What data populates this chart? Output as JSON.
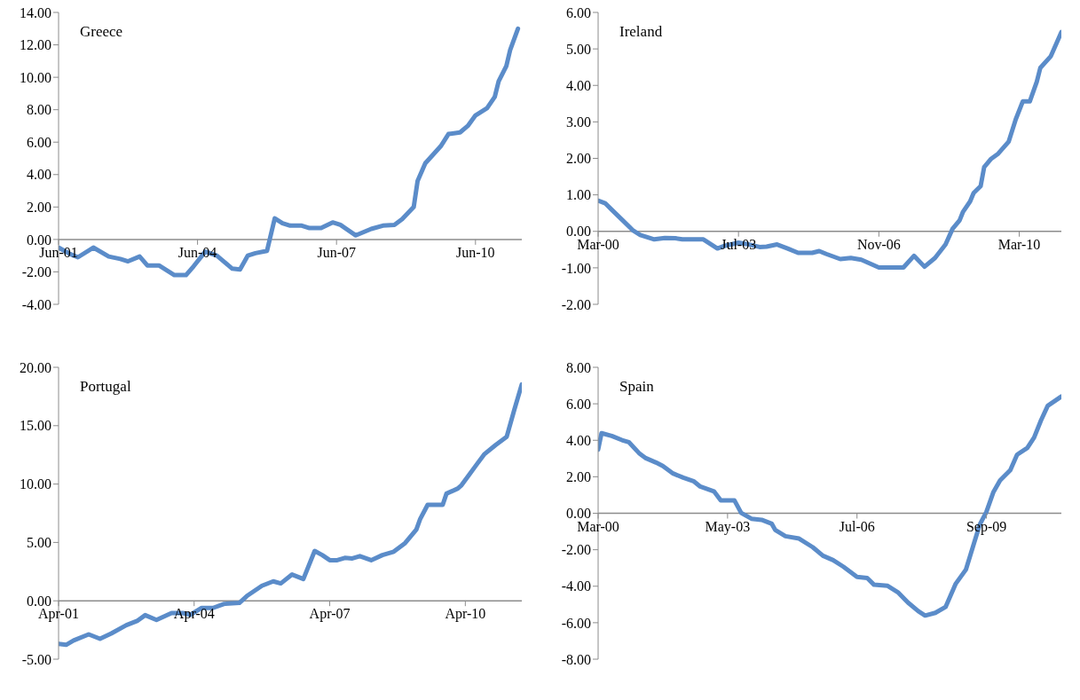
{
  "chart_data": [
    {
      "type": "line",
      "title": "Greece",
      "color": "#5b8cc9",
      "x": [
        "2001-06",
        "2001-09",
        "2001-11",
        "2002-03",
        "2002-07",
        "2002-10",
        "2002-12",
        "2003-03",
        "2003-05",
        "2003-08",
        "2003-12",
        "2004-03",
        "2004-05",
        "2004-08",
        "2004-11",
        "2005-03",
        "2005-05",
        "2005-07",
        "2005-09",
        "2005-12",
        "2006-02",
        "2006-04",
        "2006-06",
        "2006-09",
        "2006-11",
        "2007-02",
        "2007-05",
        "2007-07",
        "2007-11",
        "2008-03",
        "2008-06",
        "2008-09",
        "2008-11",
        "2009-02",
        "2009-03",
        "2009-05",
        "2009-09",
        "2009-11",
        "2010-02",
        "2010-04",
        "2010-06",
        "2010-09",
        "2010-11",
        "2010-12",
        "2011-02",
        "2011-03",
        "2011-05"
      ],
      "values": [
        -0.5,
        -0.9,
        -1.1,
        -0.5,
        -1.05,
        -1.2,
        -1.35,
        -1.05,
        -1.6,
        -1.6,
        -2.2,
        -2.2,
        -1.65,
        -0.75,
        -1.0,
        -1.8,
        -1.85,
        -1.0,
        -0.85,
        -0.7,
        1.3,
        1.0,
        0.85,
        0.85,
        0.7,
        0.7,
        1.05,
        0.9,
        0.25,
        0.65,
        0.85,
        0.9,
        1.25,
        2.0,
        3.6,
        4.7,
        5.75,
        6.5,
        6.6,
        7.0,
        7.65,
        8.1,
        8.8,
        9.75,
        10.7,
        11.7,
        13.0
      ],
      "xlim": [
        "2001-06",
        "2011-06"
      ],
      "xticks": [
        {
          "value": "2001-06",
          "label": "Jun-01"
        },
        {
          "value": "2004-06",
          "label": "Jun-04"
        },
        {
          "value": "2007-06",
          "label": "Jun-07"
        },
        {
          "value": "2010-06",
          "label": "Jun-10"
        }
      ],
      "ylim": [
        -4,
        14
      ],
      "yticks": [
        {
          "value": -4,
          "label": "-4.00"
        },
        {
          "value": -2,
          "label": "-2.00"
        },
        {
          "value": 0,
          "label": "0.00"
        },
        {
          "value": 2,
          "label": "2.00"
        },
        {
          "value": 4,
          "label": "4.00"
        },
        {
          "value": 6,
          "label": "6.00"
        },
        {
          "value": 8,
          "label": "8.00"
        },
        {
          "value": 10,
          "label": "10.00"
        },
        {
          "value": 12,
          "label": "12.00"
        },
        {
          "value": 14,
          "label": "14.00"
        }
      ]
    },
    {
      "type": "line",
      "title": "Ireland",
      "color": "#5b8cc9",
      "x": [
        "2000-03",
        "2000-05",
        "2000-07",
        "2000-10",
        "2001-01",
        "2001-03",
        "2001-07",
        "2001-10",
        "2002-01",
        "2002-03",
        "2002-09",
        "2003-01",
        "2003-03",
        "2003-07",
        "2003-10",
        "2004-01",
        "2004-03",
        "2004-06",
        "2004-09",
        "2004-12",
        "2005-04",
        "2005-06",
        "2005-08",
        "2005-12",
        "2006-03",
        "2006-06",
        "2006-11",
        "2007-06",
        "2007-09",
        "2007-12",
        "2008-03",
        "2008-06",
        "2008-08",
        "2008-10",
        "2008-11",
        "2009-01",
        "2009-02",
        "2009-04",
        "2009-05",
        "2009-07",
        "2009-09",
        "2009-12",
        "2010-02",
        "2010-04",
        "2010-06",
        "2010-08",
        "2010-09",
        "2010-12",
        "2011-03"
      ],
      "values": [
        0.84,
        0.77,
        0.58,
        0.3,
        0.02,
        -0.1,
        -0.22,
        -0.18,
        -0.19,
        -0.22,
        -0.22,
        -0.47,
        -0.4,
        -0.31,
        -0.36,
        -0.43,
        -0.42,
        -0.36,
        -0.47,
        -0.59,
        -0.59,
        -0.54,
        -0.62,
        -0.76,
        -0.73,
        -0.78,
        -0.99,
        -0.99,
        -0.67,
        -0.97,
        -0.73,
        -0.36,
        0.07,
        0.3,
        0.54,
        0.82,
        1.05,
        1.24,
        1.76,
        1.99,
        2.13,
        2.46,
        3.07,
        3.56,
        3.56,
        4.1,
        4.48,
        4.8,
        5.46
      ],
      "xlim": [
        "2000-03",
        "2011-03"
      ],
      "xticks": [
        {
          "value": "2000-03",
          "label": "Mar-00"
        },
        {
          "value": "2003-07",
          "label": "Jul-03"
        },
        {
          "value": "2006-11",
          "label": "Nov-06"
        },
        {
          "value": "2010-03",
          "label": "Mar-10"
        }
      ],
      "ylim": [
        -2,
        6
      ],
      "yticks": [
        {
          "value": -2,
          "label": "-2.00"
        },
        {
          "value": -1,
          "label": "-1.00"
        },
        {
          "value": 0,
          "label": "0.00"
        },
        {
          "value": 1,
          "label": "1.00"
        },
        {
          "value": 2,
          "label": "2.00"
        },
        {
          "value": 3,
          "label": "3.00"
        },
        {
          "value": 4,
          "label": "4.00"
        },
        {
          "value": 5,
          "label": "5.00"
        },
        {
          "value": 6,
          "label": "6.00"
        }
      ]
    },
    {
      "type": "line",
      "title": "Portugal",
      "color": "#5b8cc9",
      "x": [
        "2001-04",
        "2001-06",
        "2001-08",
        "2001-12",
        "2002-03",
        "2002-06",
        "2002-10",
        "2003-01",
        "2003-03",
        "2003-06",
        "2003-10",
        "2004-01",
        "2004-03",
        "2004-06",
        "2004-09",
        "2004-12",
        "2005-04",
        "2005-06",
        "2005-10",
        "2006-01",
        "2006-03",
        "2006-06",
        "2006-09",
        "2006-12",
        "2007-02",
        "2007-04",
        "2007-06",
        "2007-08",
        "2007-10",
        "2007-12",
        "2008-03",
        "2008-06",
        "2008-09",
        "2008-12",
        "2009-03",
        "2009-04",
        "2009-06",
        "2009-10",
        "2009-11",
        "2010-02",
        "2010-03",
        "2010-05",
        "2010-07",
        "2010-09",
        "2010-12",
        "2011-03",
        "2011-05",
        "2011-07"
      ],
      "values": [
        -3.68,
        -3.77,
        -3.39,
        -2.87,
        -3.25,
        -2.8,
        -2.08,
        -1.7,
        -1.23,
        -1.64,
        -1.05,
        -1.05,
        -1.2,
        -0.61,
        -0.61,
        -0.26,
        -0.18,
        0.41,
        1.29,
        1.67,
        1.49,
        2.25,
        1.87,
        4.27,
        3.92,
        3.48,
        3.48,
        3.68,
        3.63,
        3.83,
        3.48,
        3.92,
        4.21,
        4.94,
        6.11,
        6.99,
        8.22,
        8.22,
        9.18,
        9.62,
        9.91,
        10.79,
        11.67,
        12.54,
        13.33,
        14.06,
        16.35,
        18.54
      ],
      "xlim": [
        "2001-04",
        "2011-07"
      ],
      "xticks": [
        {
          "value": "2001-04",
          "label": "Apr-01"
        },
        {
          "value": "2004-04",
          "label": "Apr-04"
        },
        {
          "value": "2007-04",
          "label": "Apr-07"
        },
        {
          "value": "2010-04",
          "label": "Apr-10"
        }
      ],
      "ylim": [
        -5,
        20
      ],
      "yticks": [
        {
          "value": -5,
          "label": "-5.00"
        },
        {
          "value": 0,
          "label": "0.00"
        },
        {
          "value": 5,
          "label": "5.00"
        },
        {
          "value": 10,
          "label": "10.00"
        },
        {
          "value": 15,
          "label": "15.00"
        },
        {
          "value": 20,
          "label": "20.00"
        }
      ]
    },
    {
      "type": "line",
      "title": "Spain",
      "color": "#5b8cc9",
      "x": [
        "2000-03",
        "2000-04",
        "2000-07",
        "2000-10",
        "2000-12",
        "2001-03",
        "2001-05",
        "2001-08",
        "2001-10",
        "2002-01",
        "2002-04",
        "2002-07",
        "2002-09",
        "2003-01",
        "2003-03",
        "2003-07",
        "2003-09",
        "2003-12",
        "2004-03",
        "2004-06",
        "2004-07",
        "2004-10",
        "2005-02",
        "2005-06",
        "2005-09",
        "2005-12",
        "2006-03",
        "2006-07",
        "2006-10",
        "2006-12",
        "2007-04",
        "2007-07",
        "2007-10",
        "2008-01",
        "2008-03",
        "2008-06",
        "2008-09",
        "2008-12",
        "2009-03",
        "2009-05",
        "2009-07",
        "2009-09",
        "2009-11",
        "2010-01",
        "2010-04",
        "2010-06",
        "2010-09",
        "2010-11",
        "2011-01",
        "2011-03",
        "2011-07"
      ],
      "values": [
        3.49,
        4.39,
        4.24,
        4.01,
        3.9,
        3.3,
        3.02,
        2.78,
        2.59,
        2.18,
        1.95,
        1.76,
        1.46,
        1.2,
        0.71,
        0.71,
        0.02,
        -0.3,
        -0.36,
        -0.58,
        -0.92,
        -1.26,
        -1.39,
        -1.86,
        -2.33,
        -2.57,
        -2.93,
        -3.49,
        -3.55,
        -3.92,
        -3.98,
        -4.33,
        -4.9,
        -5.37,
        -5.61,
        -5.46,
        -5.14,
        -3.86,
        -3.08,
        -1.86,
        -0.64,
        0.08,
        1.14,
        1.8,
        2.36,
        3.21,
        3.58,
        4.15,
        5.08,
        5.89,
        6.4
      ],
      "xlim": [
        "2000-03",
        "2011-07"
      ],
      "xticks": [
        {
          "value": "2000-03",
          "label": "Mar-00"
        },
        {
          "value": "2003-05",
          "label": "May-03"
        },
        {
          "value": "2006-07",
          "label": "Jul-06"
        },
        {
          "value": "2009-09",
          "label": "Sep-09"
        }
      ],
      "ylim": [
        -8,
        8
      ],
      "yticks": [
        {
          "value": -8,
          "label": "-8.00"
        },
        {
          "value": -6,
          "label": "-6.00"
        },
        {
          "value": -4,
          "label": "-4.00"
        },
        {
          "value": -2,
          "label": "-2.00"
        },
        {
          "value": 0,
          "label": "0.00"
        },
        {
          "value": 2,
          "label": "2.00"
        },
        {
          "value": 4,
          "label": "4.00"
        },
        {
          "value": 6,
          "label": "6.00"
        },
        {
          "value": 8,
          "label": "8.00"
        }
      ]
    }
  ]
}
